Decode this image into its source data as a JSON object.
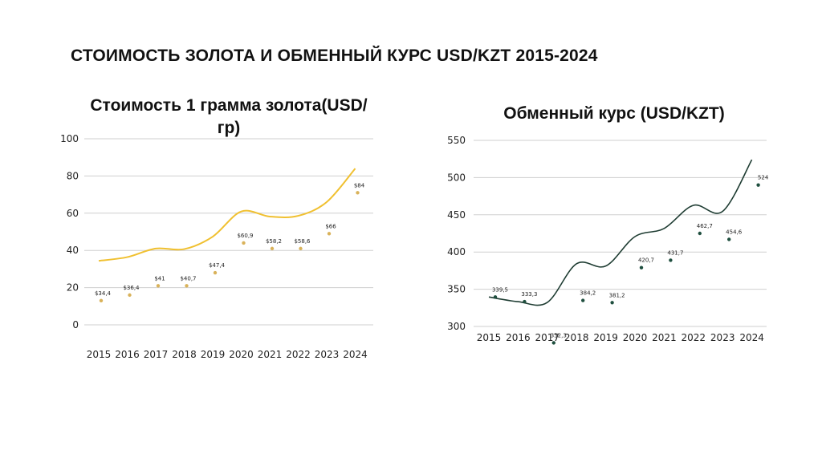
{
  "header": {
    "title": "СТОИМОСТЬ ЗОЛОТА И ОБМЕННЫЙ КУРС USD/KZT 2015-2024"
  },
  "chart_data": [
    {
      "type": "line",
      "title": "Стоимость 1 грамма золота(USD/гр)",
      "categories": [
        "2015",
        "2016",
        "2017",
        "2018",
        "2019",
        "2020",
        "2021",
        "2022",
        "2023",
        "2024"
      ],
      "ylim": [
        0,
        100
      ],
      "yticks": [
        "0",
        "20",
        "40",
        "60",
        "80",
        "100"
      ],
      "grid": true,
      "colors": {
        "line": "#f0c030",
        "points": "#d9b25a"
      },
      "series": [
        {
          "values": [
            34.4,
            36.4,
            41,
            40.7,
            47.4,
            60.9,
            58.2,
            58.6,
            66,
            84
          ]
        }
      ],
      "points": [
        13,
        16,
        21,
        21,
        28,
        44,
        41,
        41,
        49,
        71
      ],
      "point_labels": [
        "$34,4",
        "$36,4",
        "$41",
        "$40,7",
        "$47,4",
        "$60,9",
        "$58,2",
        "$58,6",
        "$66",
        "$84"
      ]
    },
    {
      "type": "line",
      "title": "Обменный курс (USD/KZT)",
      "categories": [
        "2015",
        "2016",
        "2017",
        "2018",
        "2019",
        "2020",
        "2021",
        "2022",
        "2023",
        "2024"
      ],
      "ylim": [
        300,
        550
      ],
      "yticks": [
        "300",
        "350",
        "400",
        "450",
        "500",
        "550"
      ],
      "grid": true,
      "colors": {
        "line": "#1f3d33",
        "points": "#1f4f3f"
      },
      "series": [
        {
          "values": [
            339.5,
            333.3,
            332.3,
            384.2,
            381.2,
            420.7,
            431.7,
            462.7,
            454.6,
            524
          ]
        }
      ],
      "points": [
        339.5,
        333.3,
        278,
        335,
        332,
        379,
        389,
        425,
        417,
        490
      ],
      "point_labels": [
        "339,5",
        "333,3",
        "332,3",
        "384,2",
        "381,2",
        "420,7",
        "431,7",
        "462,7",
        "454,6",
        "524"
      ]
    }
  ]
}
